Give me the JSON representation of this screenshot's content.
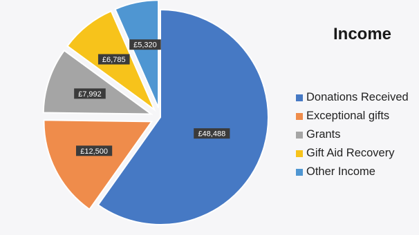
{
  "chart_data": {
    "type": "pie",
    "title": "Income",
    "categories": [
      "Donations Received",
      "Exceptional gifts",
      "Grants",
      "Gift Aid Recovery",
      "Other Income"
    ],
    "values": [
      48488,
      12500,
      7992,
      6785,
      5320
    ],
    "data_labels": [
      "£48,488",
      "£12,500",
      "£7,992",
      "£6,785",
      "£5,320"
    ],
    "colors": [
      "#4679c4",
      "#ef8c4b",
      "#a5a5a5",
      "#f7c31b",
      "#4f96d2"
    ],
    "exploded": [
      false,
      true,
      true,
      true,
      true
    ],
    "legend_position": "right"
  }
}
